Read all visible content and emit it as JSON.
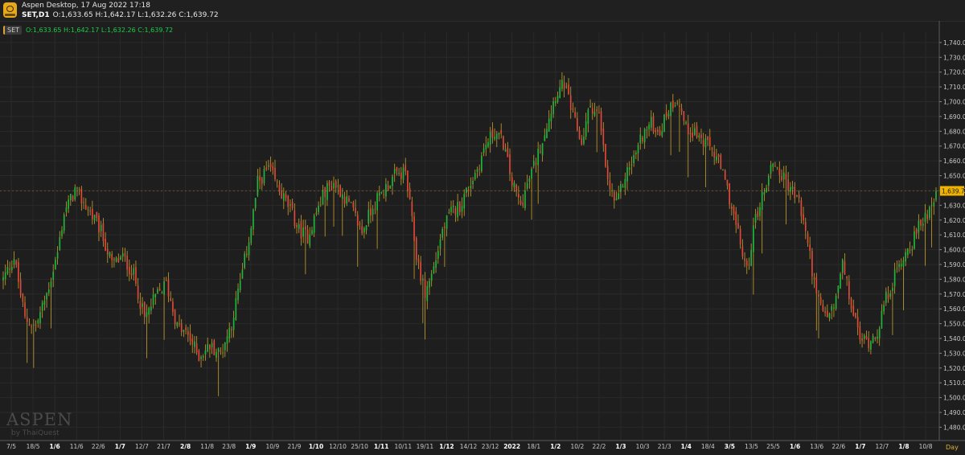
{
  "window": {
    "title": "Aspen Desktop, 17 Aug 2022 17:18",
    "symbol_line": "SET,D1",
    "ohlc_header": "O:1,633.65 H:1,642.17 L:1,632.26 C:1,639.72"
  },
  "legend": {
    "symbol": "SET",
    "ohlc": "O:1,633.65  H:1,642.17  L:1,632.26  C:1,639.72"
  },
  "watermark": {
    "brand": "ASPEN",
    "sub": "by ThaiQuest"
  },
  "period": "Day",
  "colors": {
    "background": "#1e1e1e",
    "up": "#21b63b",
    "down": "#e1483a",
    "wick": "#c9a12a",
    "grid": "#2a2a2a",
    "axis_text": "#c8c8c8",
    "price_marker": "#f0b400"
  },
  "chart_data": {
    "type": "candlestick",
    "title": "SET,D1",
    "ylim": [
      1471,
      1747
    ],
    "y_ticks": [
      "1,740.00",
      "1,730.00",
      "1,720.00",
      "1,710.00",
      "1,700.00",
      "1,690.00",
      "1,680.00",
      "1,670.00",
      "1,660.00",
      "1,650.00",
      "1,640.00",
      "1,630.00",
      "1,620.00",
      "1,610.00",
      "1,600.00",
      "1,590.00",
      "1,580.00",
      "1,570.00",
      "1,560.00",
      "1,550.00",
      "1,540.00",
      "1,530.00",
      "1,520.00",
      "1,510.00",
      "1,500.00",
      "1,490.00",
      "1,480.00"
    ],
    "x_labels": [
      {
        "label": "7/5",
        "bold": false
      },
      {
        "label": "18/5",
        "bold": false
      },
      {
        "label": "1/6",
        "bold": true
      },
      {
        "label": "11/6",
        "bold": false
      },
      {
        "label": "22/6",
        "bold": false
      },
      {
        "label": "1/7",
        "bold": true
      },
      {
        "label": "12/7",
        "bold": false
      },
      {
        "label": "21/7",
        "bold": false
      },
      {
        "label": "2/8",
        "bold": true
      },
      {
        "label": "11/8",
        "bold": false
      },
      {
        "label": "23/8",
        "bold": false
      },
      {
        "label": "1/9",
        "bold": true
      },
      {
        "label": "10/9",
        "bold": false
      },
      {
        "label": "21/9",
        "bold": false
      },
      {
        "label": "1/10",
        "bold": true
      },
      {
        "label": "12/10",
        "bold": false
      },
      {
        "label": "25/10",
        "bold": false
      },
      {
        "label": "1/11",
        "bold": true
      },
      {
        "label": "10/11",
        "bold": false
      },
      {
        "label": "19/11",
        "bold": false
      },
      {
        "label": "1/12",
        "bold": true
      },
      {
        "label": "14/12",
        "bold": false
      },
      {
        "label": "23/12",
        "bold": false
      },
      {
        "label": "2022",
        "bold": true
      },
      {
        "label": "18/1",
        "bold": false
      },
      {
        "label": "1/2",
        "bold": true
      },
      {
        "label": "10/2",
        "bold": false
      },
      {
        "label": "22/2",
        "bold": false
      },
      {
        "label": "1/3",
        "bold": true
      },
      {
        "label": "10/3",
        "bold": false
      },
      {
        "label": "21/3",
        "bold": false
      },
      {
        "label": "1/4",
        "bold": true
      },
      {
        "label": "18/4",
        "bold": false
      },
      {
        "label": "3/5",
        "bold": true
      },
      {
        "label": "13/5",
        "bold": false
      },
      {
        "label": "25/5",
        "bold": false
      },
      {
        "label": "1/6",
        "bold": true
      },
      {
        "label": "13/6",
        "bold": false
      },
      {
        "label": "22/6",
        "bold": false
      },
      {
        "label": "1/7",
        "bold": true
      },
      {
        "label": "12/7",
        "bold": false
      },
      {
        "label": "1/8",
        "bold": true
      },
      {
        "label": "10/8",
        "bold": false
      }
    ],
    "last_price": "1,639.72",
    "close_path": [
      [
        0,
        1580
      ],
      [
        5,
        1595
      ],
      [
        10,
        1553
      ],
      [
        15,
        1548
      ],
      [
        20,
        1570
      ],
      [
        25,
        1598
      ],
      [
        28,
        1625
      ],
      [
        33,
        1640
      ],
      [
        40,
        1625
      ],
      [
        45,
        1612
      ],
      [
        50,
        1590
      ],
      [
        55,
        1595
      ],
      [
        60,
        1583
      ],
      [
        65,
        1553
      ],
      [
        70,
        1568
      ],
      [
        75,
        1577
      ],
      [
        80,
        1548
      ],
      [
        85,
        1542
      ],
      [
        90,
        1528
      ],
      [
        95,
        1535
      ],
      [
        100,
        1530
      ],
      [
        105,
        1550
      ],
      [
        110,
        1585
      ],
      [
        114,
        1615
      ],
      [
        117,
        1645
      ],
      [
        122,
        1655
      ],
      [
        127,
        1640
      ],
      [
        132,
        1627
      ],
      [
        136,
        1613
      ],
      [
        140,
        1609
      ],
      [
        144,
        1625
      ],
      [
        148,
        1640
      ],
      [
        152,
        1645
      ],
      [
        155,
        1640
      ],
      [
        160,
        1628
      ],
      [
        165,
        1612
      ],
      [
        170,
        1630
      ],
      [
        175,
        1640
      ],
      [
        180,
        1650
      ],
      [
        185,
        1652
      ],
      [
        190,
        1596
      ],
      [
        194,
        1570
      ],
      [
        198,
        1588
      ],
      [
        202,
        1613
      ],
      [
        206,
        1625
      ],
      [
        210,
        1630
      ],
      [
        214,
        1642
      ],
      [
        218,
        1655
      ],
      [
        222,
        1671
      ],
      [
        226,
        1680
      ],
      [
        230,
        1672
      ],
      [
        234,
        1645
      ],
      [
        238,
        1630
      ],
      [
        242,
        1648
      ],
      [
        246,
        1665
      ],
      [
        250,
        1685
      ],
      [
        254,
        1705
      ],
      [
        258,
        1712
      ],
      [
        262,
        1690
      ],
      [
        266,
        1672
      ],
      [
        270,
        1698
      ],
      [
        274,
        1690
      ],
      [
        278,
        1645
      ],
      [
        282,
        1630
      ],
      [
        286,
        1650
      ],
      [
        290,
        1662
      ],
      [
        294,
        1678
      ],
      [
        298,
        1685
      ],
      [
        302,
        1680
      ],
      [
        306,
        1695
      ],
      [
        310,
        1703
      ],
      [
        314,
        1682
      ],
      [
        318,
        1680
      ],
      [
        322,
        1672
      ],
      [
        326,
        1668
      ],
      [
        330,
        1655
      ],
      [
        334,
        1635
      ],
      [
        338,
        1610
      ],
      [
        342,
        1585
      ],
      [
        346,
        1622
      ],
      [
        350,
        1640
      ],
      [
        354,
        1660
      ],
      [
        358,
        1650
      ],
      [
        362,
        1642
      ],
      [
        366,
        1632
      ],
      [
        370,
        1605
      ],
      [
        374,
        1568
      ],
      [
        378,
        1555
      ],
      [
        382,
        1560
      ],
      [
        386,
        1590
      ],
      [
        390,
        1562
      ],
      [
        394,
        1540
      ],
      [
        398,
        1538
      ],
      [
        402,
        1545
      ],
      [
        406,
        1567
      ],
      [
        410,
        1582
      ],
      [
        414,
        1596
      ],
      [
        418,
        1605
      ],
      [
        422,
        1618
      ],
      [
        426,
        1628
      ],
      [
        429,
        1640
      ]
    ]
  }
}
